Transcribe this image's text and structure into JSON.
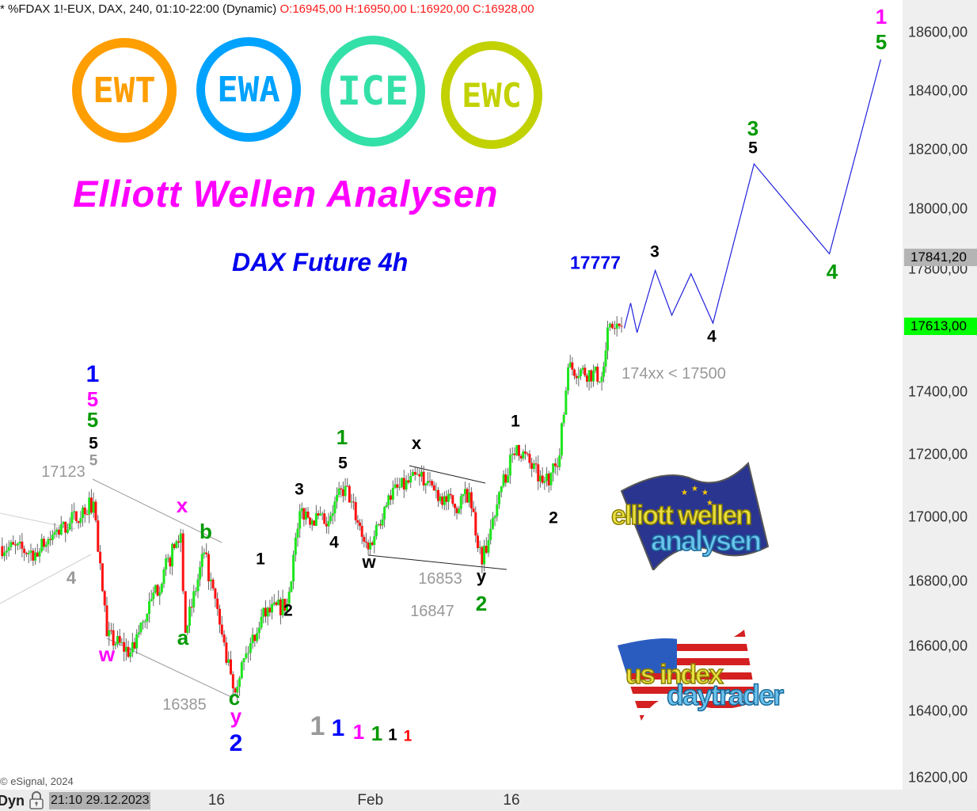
{
  "header": {
    "symbol_info": "* %FDAX 1!-EUX, DAX, 240, 01:10-22:00 (Dynamic)",
    "ohlc": "O:16945,00 H:16950,00 L:16920,00 C:16928,00"
  },
  "logos": [
    {
      "text": "EWT",
      "color": "#ff9e00"
    },
    {
      "text": "EWA",
      "color": "#00a2ff"
    },
    {
      "text": "ICE",
      "color": "#33e0a8"
    },
    {
      "text": "EWC",
      "color": "#c2d100"
    }
  ],
  "title": "Elliott Wellen Analysen",
  "subtitle": "DAX Future 4h",
  "brand_logos": [
    {
      "line1": "elliott wellen",
      "line2": "analysen",
      "flag": "eu"
    },
    {
      "line1": "us index",
      "line2": "daytrader",
      "flag": "us"
    }
  ],
  "copyright": "© eSignal, 2024",
  "bottom_bar": {
    "mode": "Dyn",
    "lock_icon": "lock-icon",
    "start_time": "21:10 29.12.2023"
  },
  "chart_data": {
    "type": "candlestick",
    "y_scale": "log",
    "ylim": [
      16150,
      18750
    ],
    "grid": false,
    "y_ticks": [
      "18600,00",
      "18400,00",
      "18200,00",
      "18000,00",
      "17800,00",
      "17400,00",
      "17200,00",
      "17000,00",
      "16800,00",
      "16600,00",
      "16400,00",
      "16200,00"
    ],
    "y_tick_values": [
      18600,
      18400,
      18200,
      18000,
      17800,
      17400,
      17200,
      17000,
      16800,
      16600,
      16400,
      16200
    ],
    "x_ticks": [
      {
        "label": "16",
        "t": "2024-01-16 00:00"
      },
      {
        "label": "Feb",
        "t": "2024-02-01 00:00"
      },
      {
        "label": "16",
        "t": "2024-02-16 00:00"
      }
    ],
    "price_markers": [
      {
        "label": "17841,20",
        "value": 17841.2,
        "color": "#b4b4b4"
      },
      {
        "label": "17613,00",
        "value": 17613,
        "color": "#00ff00"
      }
    ],
    "price_path": [
      {
        "t": "2023-12-22 03:00",
        "p": 16910
      },
      {
        "t": "2023-12-26 21:00",
        "p": 16890
      },
      {
        "t": "2024-01-02 10:00",
        "p": 17050
      },
      {
        "t": "2024-01-03 11:00",
        "p": 16630
      },
      {
        "t": "2024-01-05 07:00",
        "p": 16580
      },
      {
        "t": "2024-01-11 05:00",
        "p": 16950
      },
      {
        "t": "2024-01-11 14:00",
        "p": 16640
      },
      {
        "t": "2024-01-15 01:00",
        "p": 16890
      },
      {
        "t": "2024-01-17 07:00",
        "p": 16470
      },
      {
        "t": "2024-01-19 12:00",
        "p": 16690
      },
      {
        "t": "2024-01-23 12:00",
        "p": 16730
      },
      {
        "t": "2024-01-24 12:00",
        "p": 17020
      },
      {
        "t": "2024-01-26 10:00",
        "p": 16980
      },
      {
        "t": "2024-01-30 01:00",
        "p": 17100
      },
      {
        "t": "2024-01-31 20:00",
        "p": 16900
      },
      {
        "t": "2024-02-02 10:00",
        "p": 17070
      },
      {
        "t": "2024-02-06 20:00",
        "p": 17130
      },
      {
        "t": "2024-02-09 14:00",
        "p": 17030
      },
      {
        "t": "2024-02-12 17:00",
        "p": 17080
      },
      {
        "t": "2024-02-13 17:00",
        "p": 16853
      },
      {
        "t": "2024-02-15 01:00",
        "p": 17080
      },
      {
        "t": "2024-02-16 10:00",
        "p": 17230
      },
      {
        "t": "2024-02-20 10:00",
        "p": 17110
      },
      {
        "t": "2024-02-21 14:00",
        "p": 17160
      },
      {
        "t": "2024-02-22 10:00",
        "p": 17480
      },
      {
        "t": "2024-02-27 01:00",
        "p": 17450
      },
      {
        "t": "2024-02-27 12:00",
        "p": 17610
      },
      {
        "t": "2024-02-28 14:00",
        "p": 17613
      }
    ],
    "projection": {
      "color": "#2020dd",
      "points": [
        {
          "t": "2024-02-28 19:00",
          "p": 17607
        },
        {
          "t": "2024-02-29 07:00",
          "p": 17690
        },
        {
          "t": "2024-02-29 19:00",
          "p": 17593
        },
        {
          "t": "2024-03-04 05:00",
          "p": 17797
        },
        {
          "t": "2024-03-05 12:00",
          "p": 17650
        },
        {
          "t": "2024-03-07 00:00",
          "p": 17786
        },
        {
          "t": "2024-03-08 17:00",
          "p": 17624
        },
        {
          "t": "2024-03-13 22:00",
          "p": 18152
        },
        {
          "t": "2024-03-21 19:00",
          "p": 17852
        },
        {
          "t": "2024-03-27 19:00",
          "p": 18507
        }
      ]
    },
    "candle_colors": {
      "up": "#1ee61e",
      "down": "#ff1010",
      "wick": "#666666"
    },
    "wave_labels": [
      {
        "text": "1",
        "color": "#0000ff"
      },
      {
        "text": "5",
        "color": "#ff00ff"
      },
      {
        "text": "5",
        "color": "#009900"
      },
      {
        "text": "5",
        "color": "#000000"
      },
      {
        "text": "5",
        "color": "#999999"
      },
      {
        "text": "17123",
        "color": "#999999"
      },
      {
        "text": "4",
        "color": "#999999"
      },
      {
        "text": "x",
        "color": "#ff00ff"
      },
      {
        "text": "b",
        "color": "#009900"
      },
      {
        "text": "a",
        "color": "#009900"
      },
      {
        "text": "w",
        "color": "#ff00ff"
      },
      {
        "text": "16385",
        "color": "#999999"
      },
      {
        "text": "c",
        "color": "#009900"
      },
      {
        "text": "y",
        "color": "#ff00ff"
      },
      {
        "text": "2",
        "color": "#0000ff"
      },
      {
        "text": "1",
        "color": "#000000"
      },
      {
        "text": "2",
        "color": "#000000"
      },
      {
        "text": "3",
        "color": "#000000"
      },
      {
        "text": "4",
        "color": "#000000"
      },
      {
        "text": "1",
        "color": "#009900"
      },
      {
        "text": "5",
        "color": "#000000"
      },
      {
        "text": "w",
        "color": "#000000"
      },
      {
        "text": "x",
        "color": "#000000"
      },
      {
        "text": "16853",
        "color": "#999999"
      },
      {
        "text": "16847",
        "color": "#999999"
      },
      {
        "text": "y",
        "color": "#000000"
      },
      {
        "text": "2",
        "color": "#009900"
      },
      {
        "text": "1",
        "color": "#000000"
      },
      {
        "text": "2",
        "color": "#000000"
      },
      {
        "text": "17777",
        "color": "#0000ee"
      },
      {
        "text": "3",
        "color": "#000000"
      },
      {
        "text": "4",
        "color": "#000000"
      },
      {
        "text": "174xx < 17500",
        "color": "#999999"
      },
      {
        "text": "3",
        "color": "#009900"
      },
      {
        "text": "5",
        "color": "#000000"
      },
      {
        "text": "4",
        "color": "#009900"
      },
      {
        "text": "1",
        "color": "#ff00ff"
      },
      {
        "text": "5",
        "color": "#009900"
      }
    ],
    "degree_legend": [
      {
        "text": "1",
        "color": "#999999"
      },
      {
        "text": "1",
        "color": "#0000ff"
      },
      {
        "text": "1",
        "color": "#ff00ff"
      },
      {
        "text": "1",
        "color": "#009900"
      },
      {
        "text": "1",
        "color": "#000000"
      },
      {
        "text": "1",
        "color": "#ff0000"
      }
    ]
  }
}
